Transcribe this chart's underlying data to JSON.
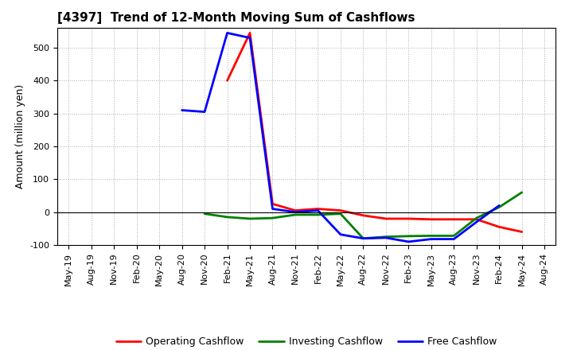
{
  "title": "[4397]  Trend of 12-Month Moving Sum of Cashflows",
  "ylabel": "Amount (million yen)",
  "ylim": [
    -100,
    560
  ],
  "yticks": [
    -100,
    0,
    100,
    200,
    300,
    400,
    500
  ],
  "background_color": "#ffffff",
  "grid_color": "#999999",
  "title_fontsize": 11,
  "axis_fontsize": 9,
  "tick_fontsize": 8,
  "legend_fontsize": 9,
  "x_labels": [
    "May-19",
    "Aug-19",
    "Nov-19",
    "Feb-20",
    "May-20",
    "Aug-20",
    "Nov-20",
    "Feb-21",
    "May-21",
    "Aug-21",
    "Nov-21",
    "Feb-22",
    "May-22",
    "Aug-22",
    "Nov-22",
    "Feb-23",
    "May-23",
    "Aug-23",
    "Nov-23",
    "Feb-24",
    "May-24",
    "Aug-24"
  ],
  "operating_cashflow": [
    null,
    null,
    null,
    null,
    null,
    null,
    null,
    400,
    545,
    25,
    5,
    10,
    5,
    -10,
    -20,
    -20,
    -22,
    -22,
    -22,
    -45,
    -60,
    null
  ],
  "investing_cashflow": [
    null,
    null,
    null,
    null,
    null,
    null,
    -5,
    -15,
    -20,
    -18,
    -8,
    -8,
    -5,
    -80,
    -75,
    -73,
    -72,
    -72,
    -18,
    15,
    60,
    null
  ],
  "free_cashflow": [
    null,
    null,
    null,
    null,
    null,
    310,
    305,
    545,
    530,
    10,
    0,
    5,
    -68,
    -80,
    -78,
    -90,
    -82,
    -82,
    -30,
    20,
    null,
    null
  ],
  "operating_color": "#ff0000",
  "investing_color": "#008000",
  "free_color": "#0000ff",
  "line_width": 2.0
}
